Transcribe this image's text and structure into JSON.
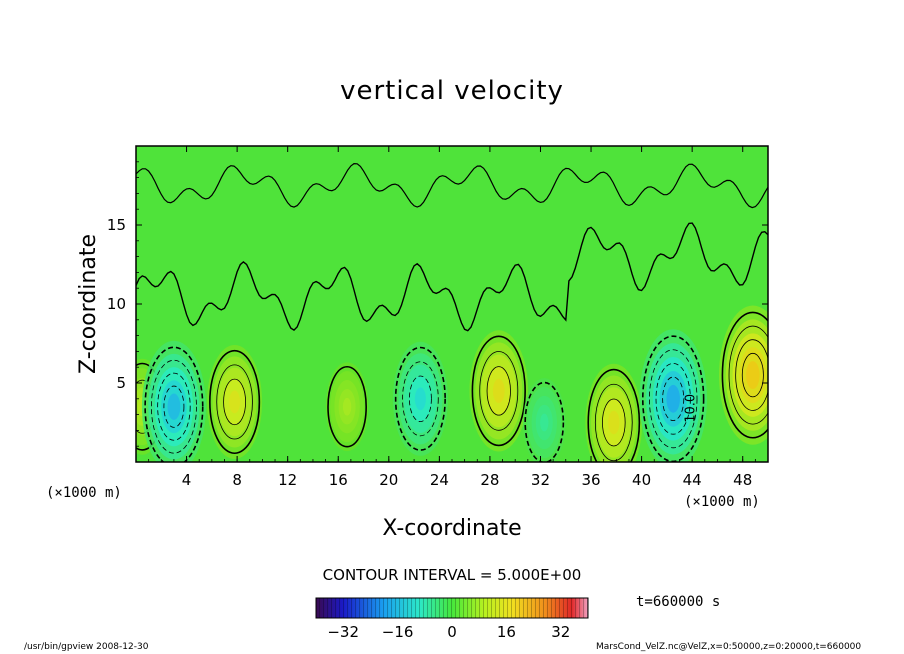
{
  "chart_data": {
    "type": "heatmap",
    "title": "vertical velocity",
    "xlabel": "X-coordinate",
    "ylabel": "Z-coordinate",
    "x_unit": "(×1000 m)",
    "y_unit": "(×1000 m)",
    "xlim": [
      0,
      50
    ],
    "ylim": [
      0,
      20
    ],
    "x_ticks": [
      "4",
      "8",
      "12",
      "16",
      "20",
      "24",
      "28",
      "32",
      "36",
      "40",
      "44",
      "48"
    ],
    "x_tick_values": [
      4,
      8,
      12,
      16,
      20,
      24,
      28,
      32,
      36,
      40,
      44,
      48
    ],
    "y_ticks": [
      "5",
      "10",
      "15"
    ],
    "y_tick_values": [
      5,
      10,
      15
    ],
    "contour_interval_text": "CONTOUR INTERVAL = 5.000E+00",
    "contour_label": "10.0",
    "colorbar": {
      "range": [
        -40,
        40
      ],
      "ticks": [
        "−32",
        "−16",
        "0",
        "16",
        "32"
      ],
      "tick_values": [
        -32,
        -16,
        0,
        16,
        32
      ]
    },
    "time_text": "t=660000 s",
    "features": [
      {
        "x": 0.5,
        "z": 3.5,
        "w": 10
      },
      {
        "x": 3.0,
        "z": 3.5,
        "w": -20
      },
      {
        "x": 7.8,
        "z": 3.8,
        "w": 15
      },
      {
        "x": 16.7,
        "z": 3.5,
        "w": 8
      },
      {
        "x": 22.5,
        "z": 4.0,
        "w": -15
      },
      {
        "x": 28.7,
        "z": 4.5,
        "w": 17
      },
      {
        "x": 32.3,
        "z": 2.5,
        "w": -8
      },
      {
        "x": 37.8,
        "z": 2.5,
        "w": 16
      },
      {
        "x": 42.5,
        "z": 4.0,
        "w": -22
      },
      {
        "x": 48.8,
        "z": 5.5,
        "w": 22
      }
    ]
  },
  "footer": {
    "left": "/usr/bin/gpview   2008-12-30",
    "right": "MarsCond_VelZ.nc@VelZ,x=0:50000,z=0:20000,t=660000"
  },
  "colors": {
    "background_field": "#4fe33a",
    "frame": "#000000"
  }
}
